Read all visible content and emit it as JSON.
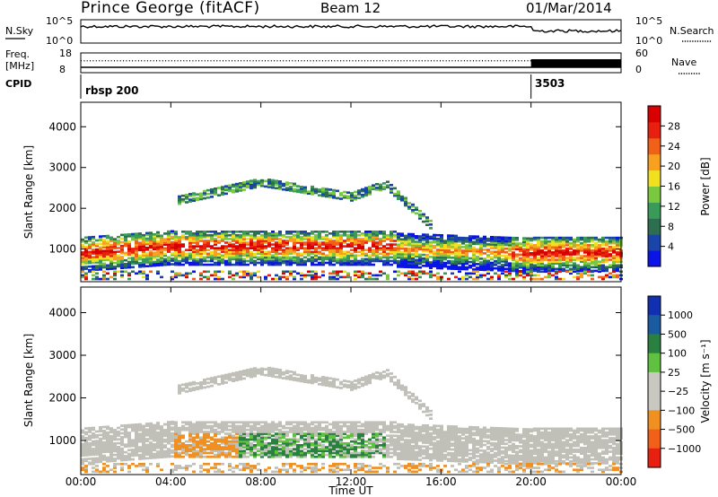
{
  "header": {
    "station": "Prince George (fitACF)",
    "beam": "Beam 12",
    "date": "01/Mar/2014"
  },
  "sky_panel": {
    "label": "N.Sky",
    "tick_top": "10^5",
    "tick_bottom": "10^0",
    "right_tick_top": "10^5",
    "right_tick_bottom": "10^0",
    "right_label": "N.Search"
  },
  "freq_panel": {
    "label_line1": "Freq.",
    "label_line2": "[MHz]",
    "tick_top": "18",
    "tick_bottom": "8",
    "right_tick_top": "60",
    "right_tick_bottom": "0",
    "right_label": "Nave"
  },
  "cpid_panel": {
    "label": "CPID",
    "value_1": "rbsp 200",
    "value_2": "3503",
    "change_hour": 20.0
  },
  "colors": {
    "power_scale": [
      "#0a14e6",
      "#1a44a8",
      "#2e6e50",
      "#3a9a5a",
      "#7ac840",
      "#f0e020",
      "#f8a020",
      "#f06018",
      "#e82010",
      "#d80000"
    ],
    "velocity_scale": [
      "#1030b0",
      "#1a5aa0",
      "#2a8040",
      "#60c040",
      "#c8c8c0",
      "#c8c8c0",
      "#f09020",
      "#f06018",
      "#e82010"
    ],
    "ground_scatter": "#c0c0b8"
  },
  "chart_data": [
    {
      "type": "heatmap",
      "title": "",
      "parameter": "Power",
      "ylabel": "Slant Range [km]",
      "ylim": [
        200,
        4600
      ],
      "yticks": [
        "1000",
        "2000",
        "3000",
        "4000"
      ],
      "xlim": [
        0,
        24
      ],
      "colorbar": {
        "label": "Power [dB]",
        "ticks": [
          "4",
          "8",
          "12",
          "16",
          "20",
          "24",
          "28"
        ],
        "range": [
          0,
          32
        ]
      }
    },
    {
      "type": "heatmap",
      "title": "",
      "parameter": "Velocity",
      "ylabel": "Slant Range [km]",
      "ylim": [
        200,
        4600
      ],
      "yticks": [
        "1000",
        "2000",
        "3000",
        "4000"
      ],
      "xlim": [
        0,
        24
      ],
      "xlabel": "Time UT",
      "xticks": [
        "00:00",
        "04:00",
        "08:00",
        "12:00",
        "16:00",
        "20:00",
        "00:00"
      ],
      "colorbar": {
        "label": "Velocity [m s⁻¹]",
        "ticks": [
          "1000",
          "500",
          "100",
          "25",
          "−25",
          "−100",
          "−500",
          "−1000"
        ]
      }
    }
  ]
}
